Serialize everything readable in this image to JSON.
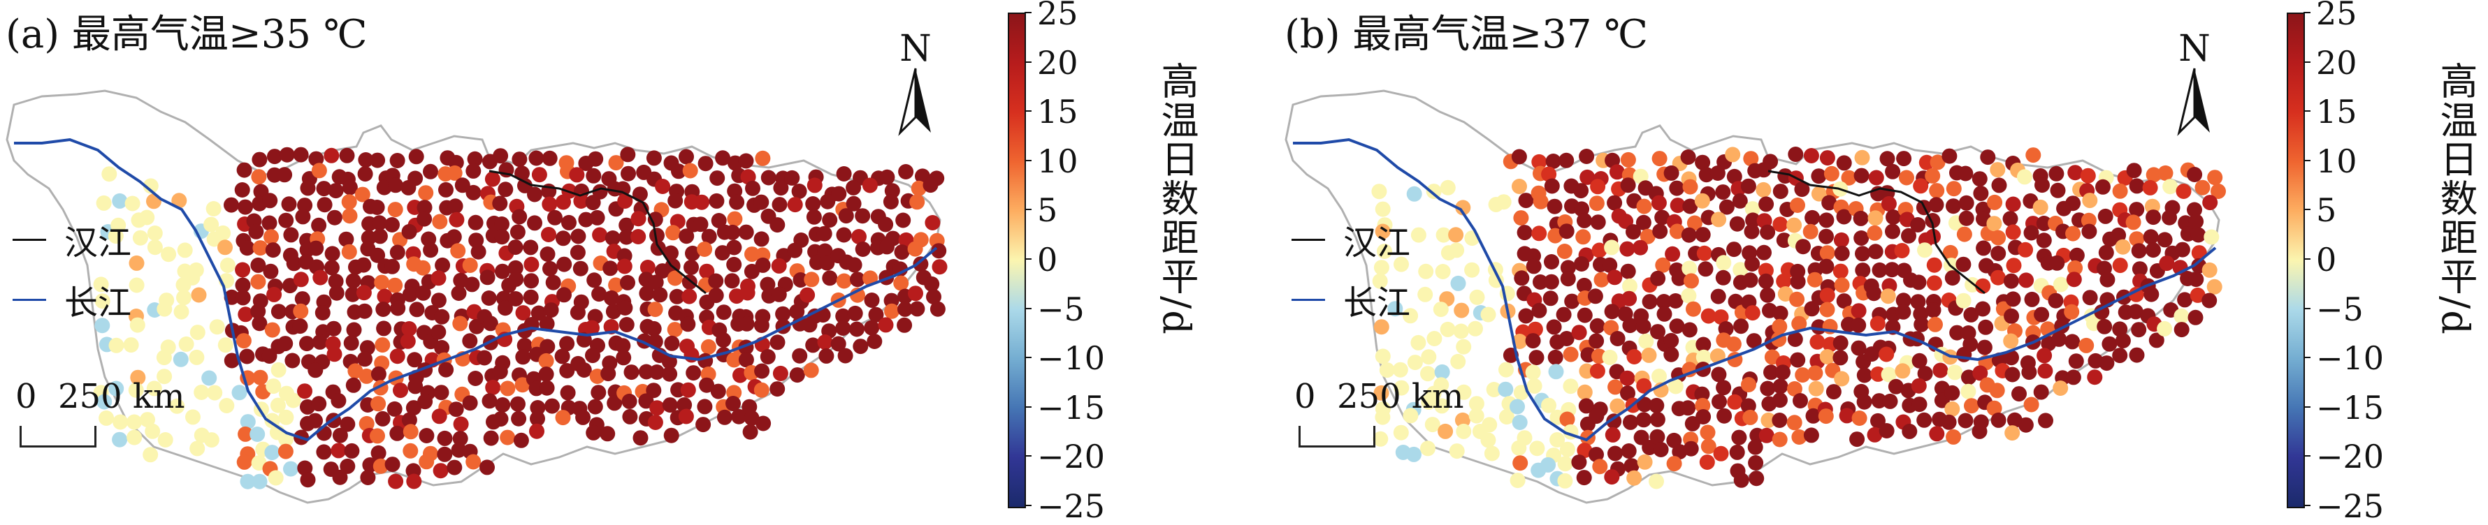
{
  "panels": [
    {
      "id": "a",
      "title": "(a) 最高气温≥35 ℃",
      "legend": [
        {
          "name": "汉江",
          "color": "#111111"
        },
        {
          "name": "长江",
          "color": "#1f4aa8"
        }
      ],
      "scale_label": "0  250 km",
      "north_label": "N",
      "colorbar": {
        "label": "高温日数距平/d",
        "ticks": [
          "25",
          "20",
          "15",
          "10",
          "5",
          "0",
          "−5",
          "−10",
          "−15",
          "−20",
          "−25"
        ]
      }
    },
    {
      "id": "b",
      "title": "(b) 最高气温≥37 ℃",
      "legend": [
        {
          "name": "汉江",
          "color": "#111111"
        },
        {
          "name": "长江",
          "color": "#1f4aa8"
        }
      ],
      "scale_label": "0  250 km",
      "north_label": "N",
      "colorbar": {
        "label": "高温日数距平/d",
        "ticks": [
          "25",
          "20",
          "15",
          "10",
          "5",
          "0",
          "−5",
          "−10",
          "−15",
          "−20",
          "−25"
        ]
      }
    }
  ],
  "colors": {
    "scale": [
      "#8c1519",
      "#b71c1c",
      "#d7301f",
      "#ef6530",
      "#fdae61",
      "#fbf5b0",
      "#abd9e9",
      "#74add1",
      "#4575b4",
      "#313695",
      "#1b2a6b"
    ],
    "basin_outline": "#b0b0b0",
    "yangtze": "#1f4aa8",
    "hanjiang": "#111111"
  }
}
